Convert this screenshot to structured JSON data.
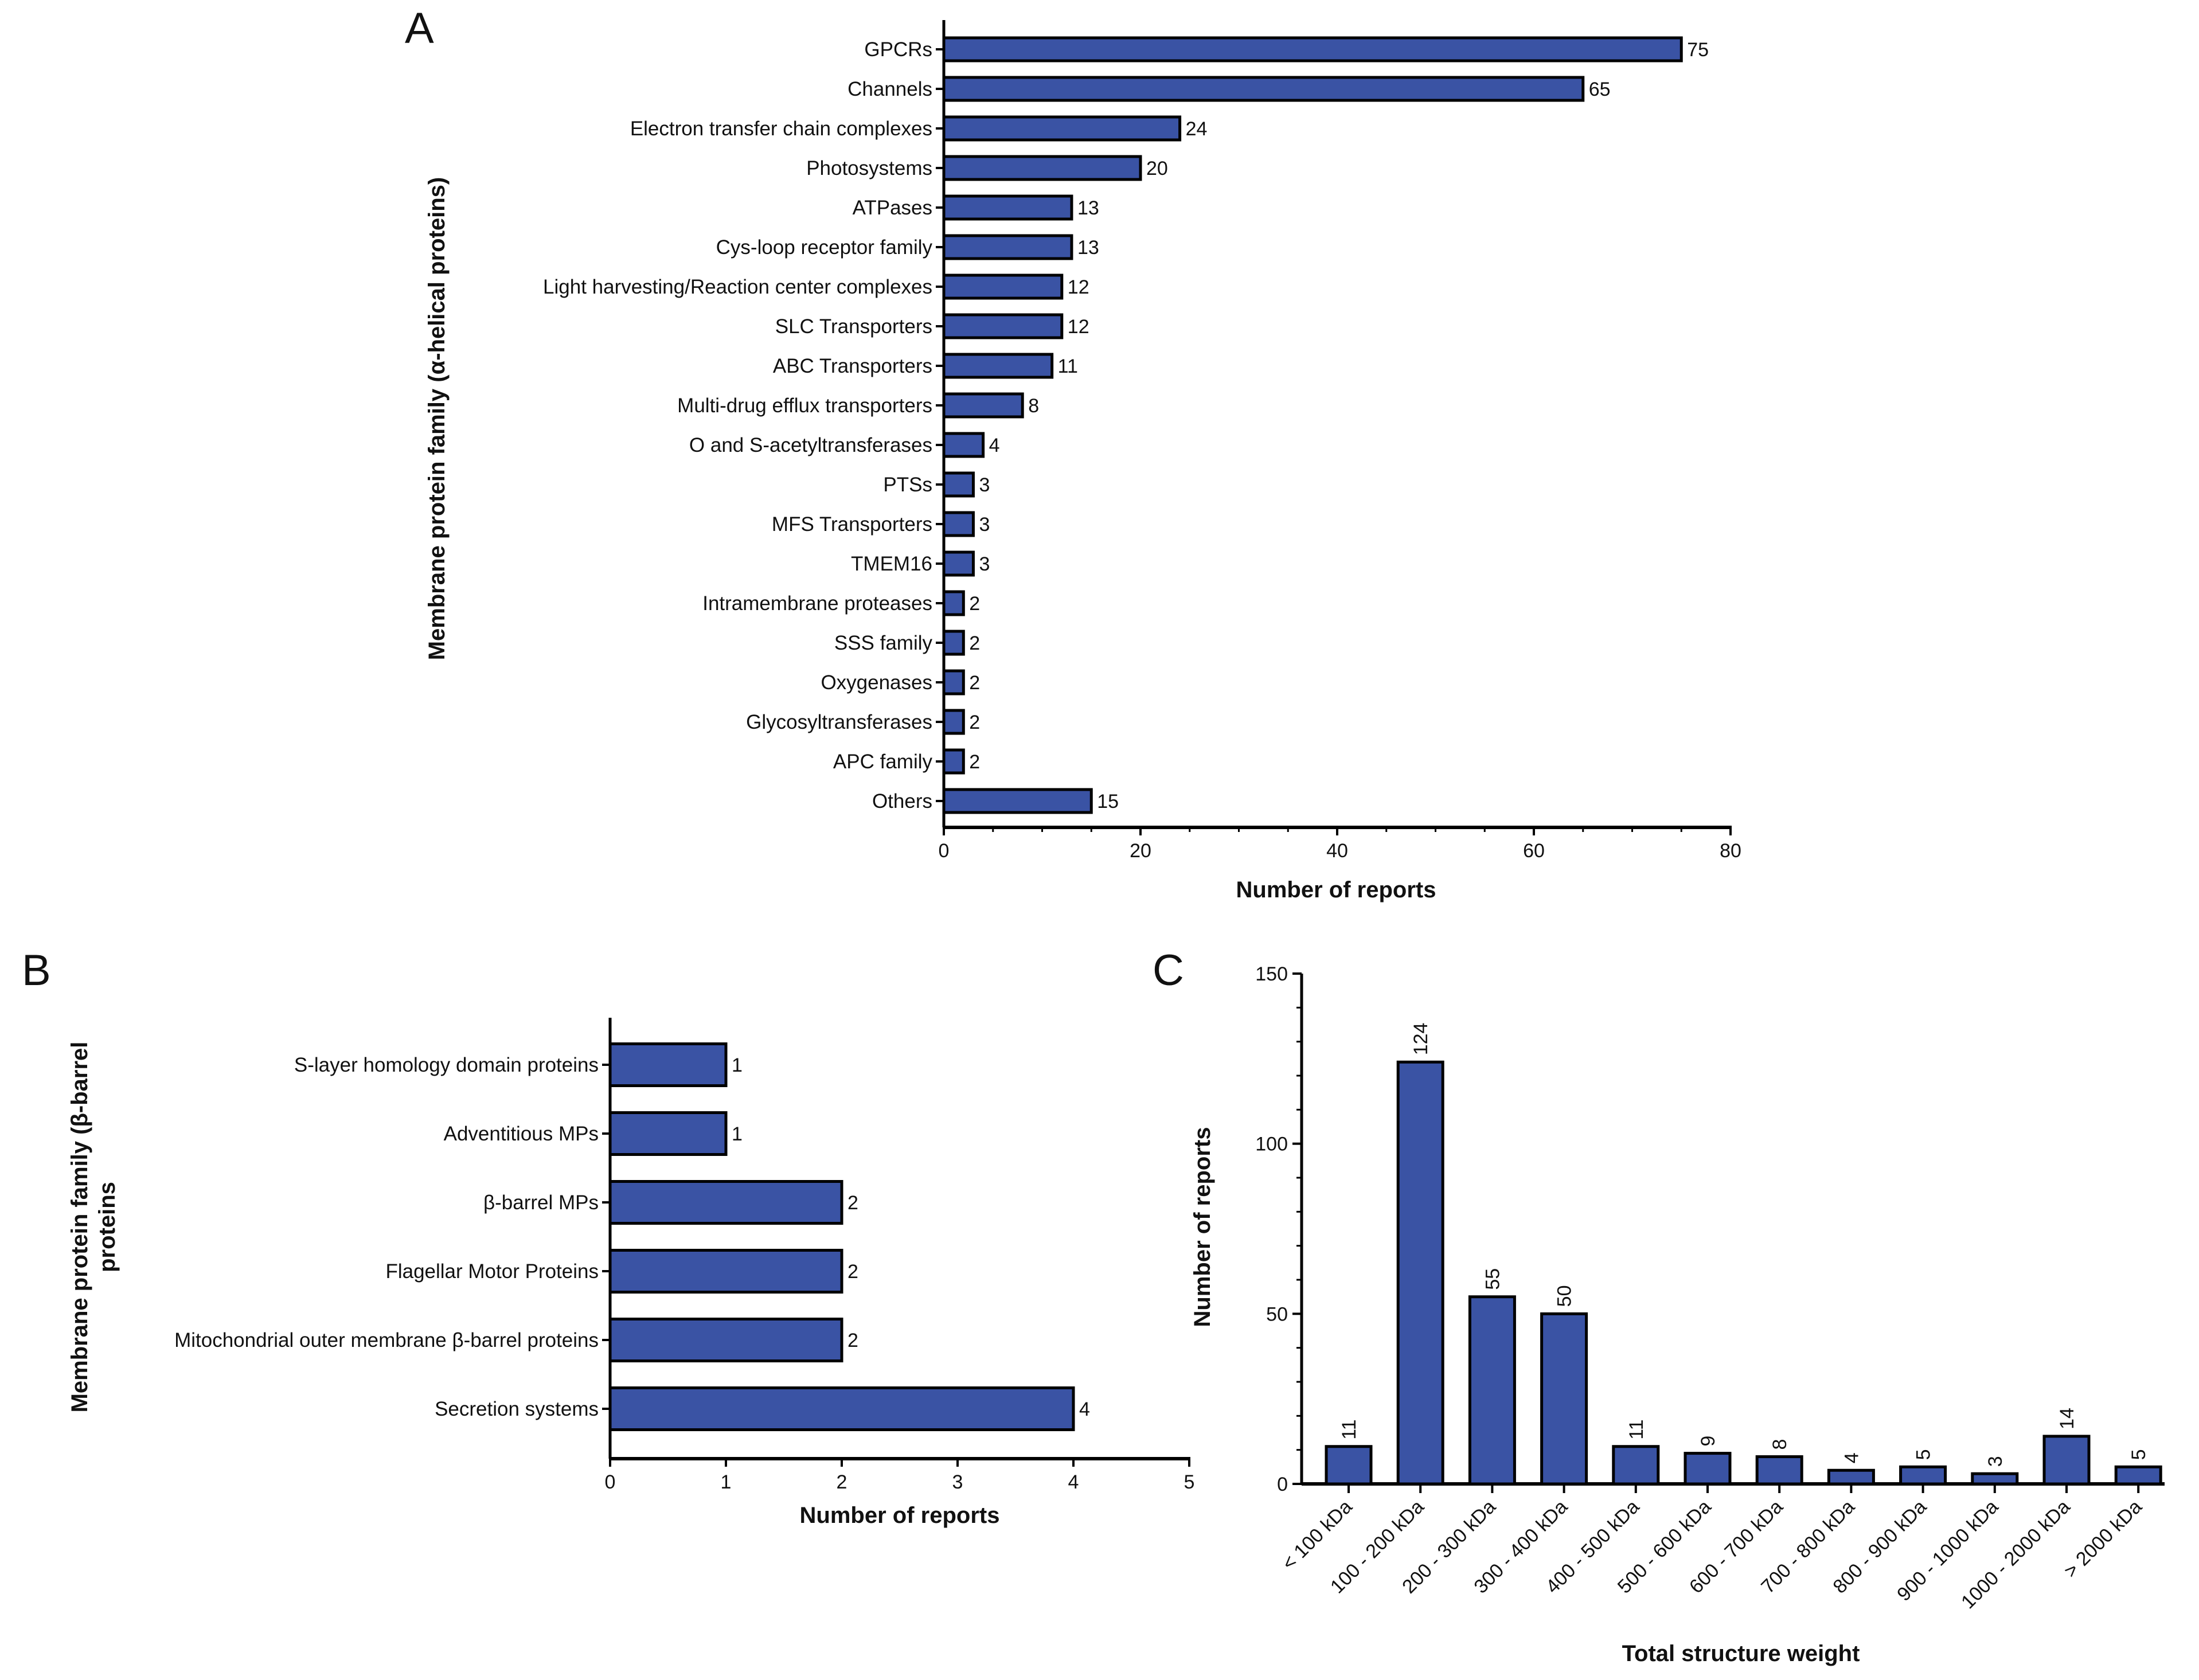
{
  "colors": {
    "bar": "#3a53a4",
    "outline": "#000000"
  },
  "chart_data": [
    {
      "panel": "A",
      "type": "bar",
      "orientation": "horizontal",
      "categories": [
        "GPCRs",
        "Channels",
        "Electron transfer chain complexes",
        "Photosystems",
        "ATPases",
        "Cys-loop receptor family",
        "Light harvesting/Reaction center complexes",
        "SLC Transporters",
        "ABC Transporters",
        "Multi-drug efflux transporters",
        "O and S-acetyltransferases",
        "PTSs",
        "MFS Transporters",
        "TMEM16",
        "Intramembrane proteases",
        "SSS family",
        "Oxygenases",
        "Glycosyltransferases",
        "APC family",
        "Others"
      ],
      "values": [
        75,
        65,
        24,
        20,
        13,
        13,
        12,
        12,
        11,
        8,
        4,
        3,
        3,
        3,
        2,
        2,
        2,
        2,
        2,
        15
      ],
      "xlabel": "Number of reports",
      "ylabel": "Membrane protein family (α-helical proteins)",
      "xlim": [
        0,
        80
      ],
      "xticks": [
        "0",
        "20",
        "40",
        "60",
        "80"
      ],
      "grid": false
    },
    {
      "panel": "B",
      "type": "bar",
      "orientation": "horizontal",
      "categories": [
        "S-layer homology domain proteins",
        "Adventitious MPs",
        "β-barrel MPs",
        "Flagellar Motor Proteins",
        "Mitochondrial outer membrane β-barrel proteins",
        "Secretion systems"
      ],
      "values": [
        1,
        1,
        2,
        2,
        2,
        4
      ],
      "xlabel": "Number of reports",
      "ylabel_lines": [
        "Membrane protein family (β-barrel",
        "proteins"
      ],
      "xlim": [
        0,
        5
      ],
      "xticks": [
        "0",
        "1",
        "2",
        "3",
        "4",
        "5"
      ],
      "grid": false
    },
    {
      "panel": "C",
      "type": "bar",
      "orientation": "vertical",
      "categories": [
        "< 100 kDa",
        "100 - 200 kDa",
        "200 - 300 kDa",
        "300 - 400 kDa",
        "400 - 500 kDa",
        "500 - 600 kDa",
        "600 - 700 kDa",
        "700 - 800 kDa",
        "800 - 900 kDa",
        "900 - 1000 kDa",
        "1000 - 2000 kDa",
        "> 2000 kDa"
      ],
      "values": [
        11,
        124,
        55,
        50,
        11,
        9,
        8,
        4,
        5,
        3,
        14,
        5
      ],
      "xlabel": "Total structure weight",
      "ylabel": "Number of reports",
      "ylim": [
        0,
        150
      ],
      "yticks": [
        "0",
        "50",
        "100",
        "150"
      ],
      "grid": false
    }
  ]
}
